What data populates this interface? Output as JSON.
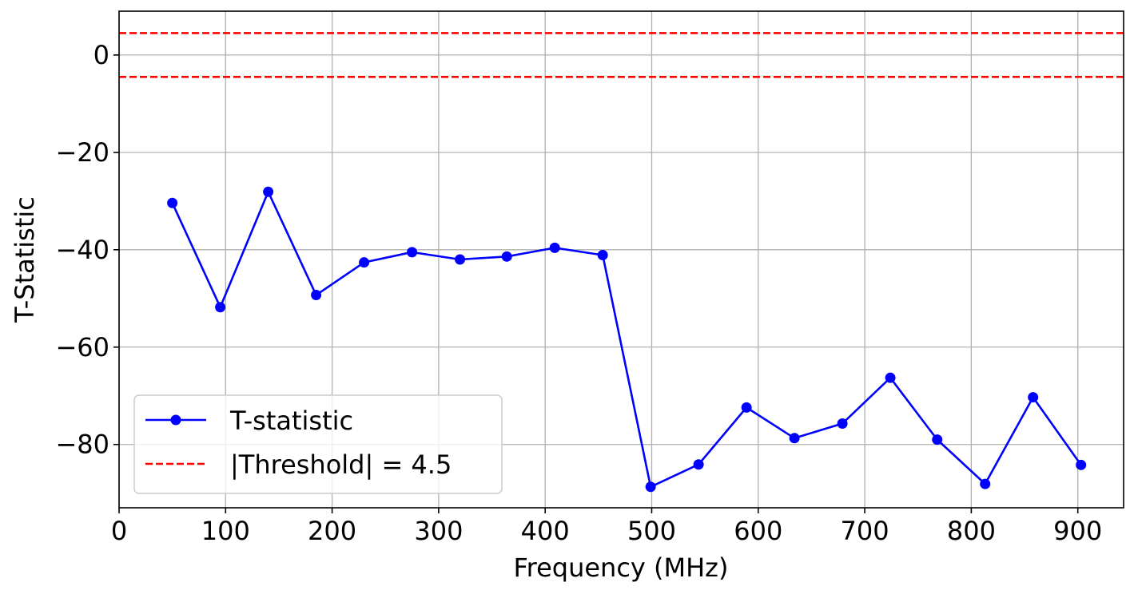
{
  "chart_data": {
    "type": "line",
    "xlabel": "Frequency (MHz)",
    "ylabel": "T-Statistic",
    "xlim": [
      0,
      943
    ],
    "ylim": [
      -93,
      9
    ],
    "xticks": [
      0,
      100,
      200,
      300,
      400,
      500,
      600,
      700,
      800,
      900
    ],
    "xtick_labels": [
      "0",
      "100",
      "200",
      "300",
      "400",
      "500",
      "600",
      "700",
      "800",
      "900"
    ],
    "yticks": [
      0,
      -20,
      -40,
      -60,
      -80
    ],
    "ytick_labels": [
      "0",
      "−20",
      "−40",
      "−60",
      "−80"
    ],
    "grid": true,
    "legend_position": "lower-left",
    "series": [
      {
        "name": "T-statistic",
        "style": "solid-line-with-circle-markers",
        "color": "#0000ff",
        "x": [
          50,
          95,
          140,
          185,
          230,
          275,
          320,
          364,
          409,
          454,
          499,
          544,
          589,
          634,
          679,
          724,
          768,
          813,
          858,
          903
        ],
        "y": [
          -30.4,
          -51.8,
          -28.1,
          -49.3,
          -42.6,
          -40.5,
          -42.0,
          -41.4,
          -39.6,
          -41.1,
          -88.7,
          -84.1,
          -72.4,
          -78.7,
          -75.7,
          -66.3,
          -79.0,
          -88.1,
          -70.3,
          -84.2
        ]
      }
    ],
    "threshold_lines": {
      "name": "|Threshold| = 4.5",
      "style": "dashed",
      "color": "#ff0000",
      "values": [
        4.5,
        -4.5
      ]
    }
  }
}
